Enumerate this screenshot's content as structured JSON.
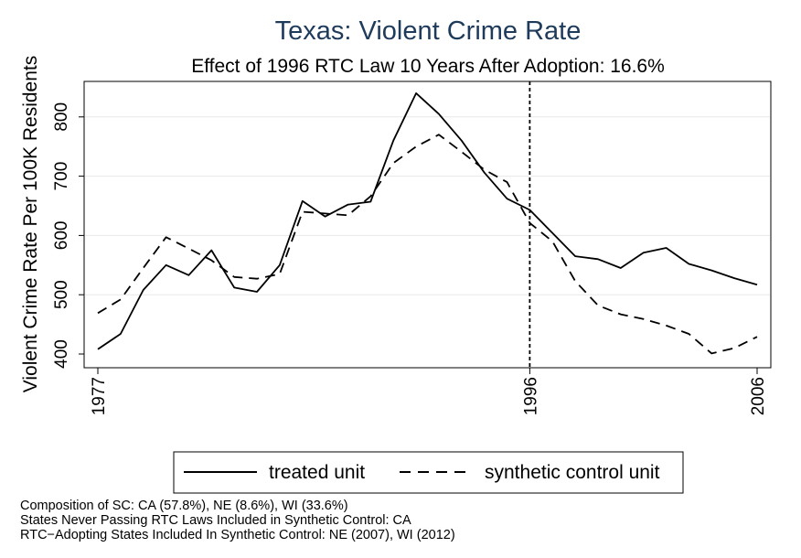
{
  "chart_data": {
    "type": "line",
    "title": "Texas: Violent Crime Rate",
    "subtitle": "Effect of 1996 RTC Law 10 Years After Adoption: 16.6%",
    "ylabel": "Violent Crime Rate Per 100K Residents",
    "xlabel": "",
    "xlim": [
      1977,
      2006
    ],
    "ylim": [
      400,
      850
    ],
    "xticks": [
      1977,
      1996,
      2006
    ],
    "yticks": [
      400,
      500,
      600,
      700,
      800
    ],
    "grid": true,
    "reference_line": {
      "x": 1996,
      "style": "dashed"
    },
    "x": [
      1977,
      1978,
      1979,
      1980,
      1981,
      1982,
      1983,
      1984,
      1985,
      1986,
      1987,
      1988,
      1989,
      1990,
      1991,
      1992,
      1993,
      1994,
      1995,
      1996,
      1997,
      1998,
      1999,
      2000,
      2001,
      2002,
      2003,
      2004,
      2005,
      2006
    ],
    "series": [
      {
        "name": "treated unit",
        "style": "solid",
        "values": [
          408,
          434,
          508,
          550,
          533,
          575,
          512,
          505,
          550,
          658,
          632,
          652,
          657,
          760,
          840,
          805,
          760,
          706,
          662,
          643,
          604,
          565,
          560,
          545,
          571,
          579,
          552,
          541,
          528,
          517
        ]
      },
      {
        "name": "synthetic control unit",
        "style": "dashed",
        "values": [
          469,
          492,
          545,
          597,
          578,
          558,
          530,
          527,
          535,
          640,
          637,
          634,
          666,
          722,
          750,
          770,
          741,
          711,
          690,
          621,
          590,
          523,
          482,
          467,
          459,
          448,
          434,
          401,
          410,
          429
        ]
      }
    ],
    "legend": {
      "position": "bottom",
      "entries": [
        "treated unit",
        "synthetic control unit"
      ]
    }
  },
  "notes": [
    "Composition of SC:  CA (57.8%), NE (8.6%), WI (33.6%)",
    "States Never Passing RTC Laws Included in Synthetic Control:  CA",
    "RTC−Adopting States Included In Synthetic Control:  NE (2007), WI (2012)"
  ]
}
